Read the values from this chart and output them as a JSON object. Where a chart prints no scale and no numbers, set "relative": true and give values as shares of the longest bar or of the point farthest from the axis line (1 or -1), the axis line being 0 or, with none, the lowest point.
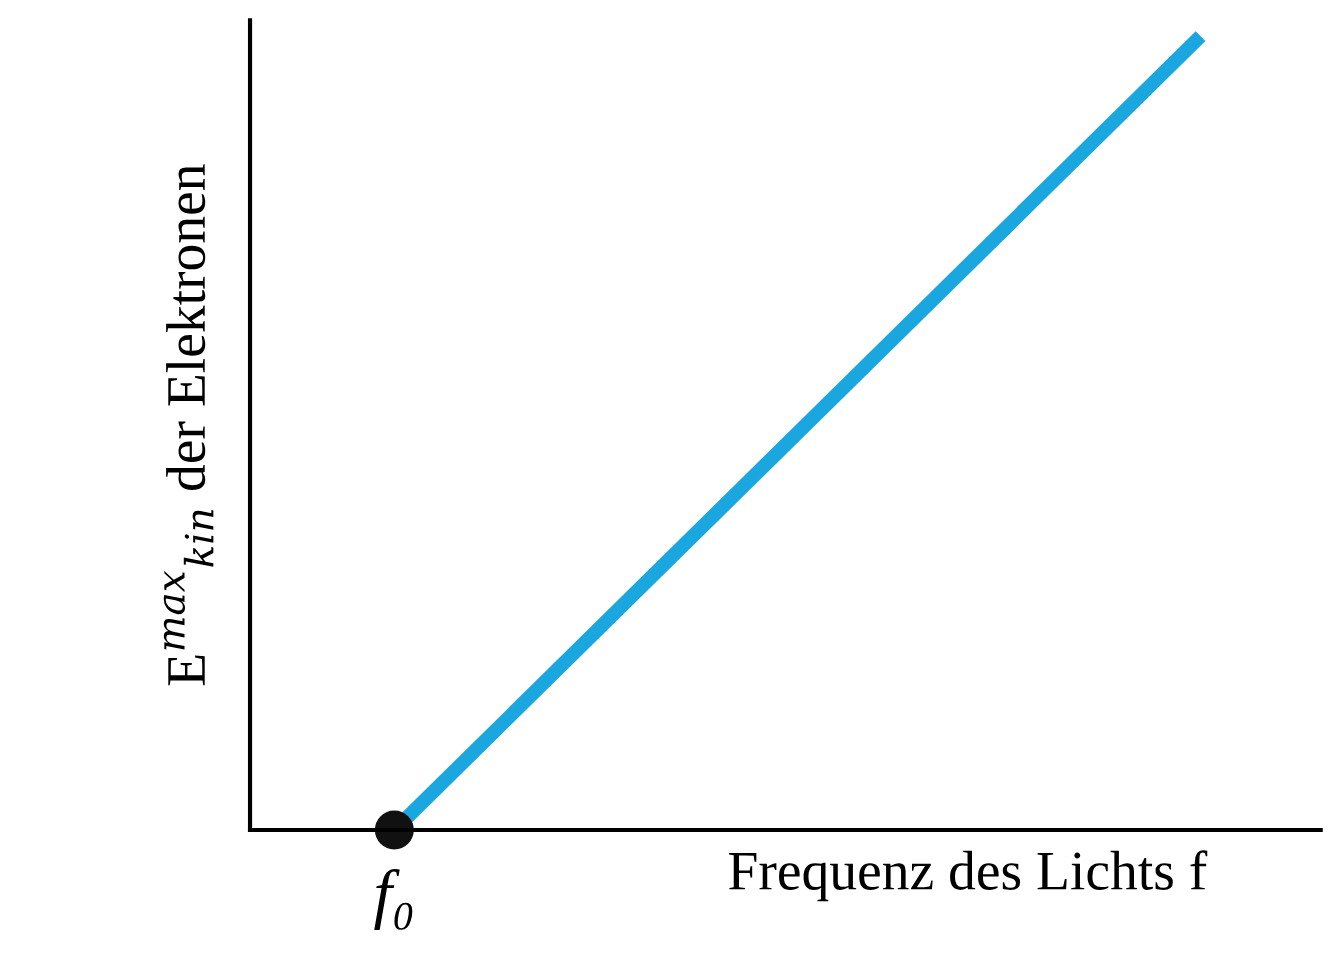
{
  "chart_data": {
    "type": "line",
    "relative": true,
    "xlabel": "Frequenz des Lichts f",
    "ylabel": "E$^{max}$$_{kin}$ der Elektronen",
    "categories": [
      null,
      null
    ],
    "annotations": [
      "f₀"
    ],
    "series": [
      {
        "color": "#1aa7e0",
        "values": [
          0,
          1
        ],
        "marker": "circle"
      }
    ]
  }
}
